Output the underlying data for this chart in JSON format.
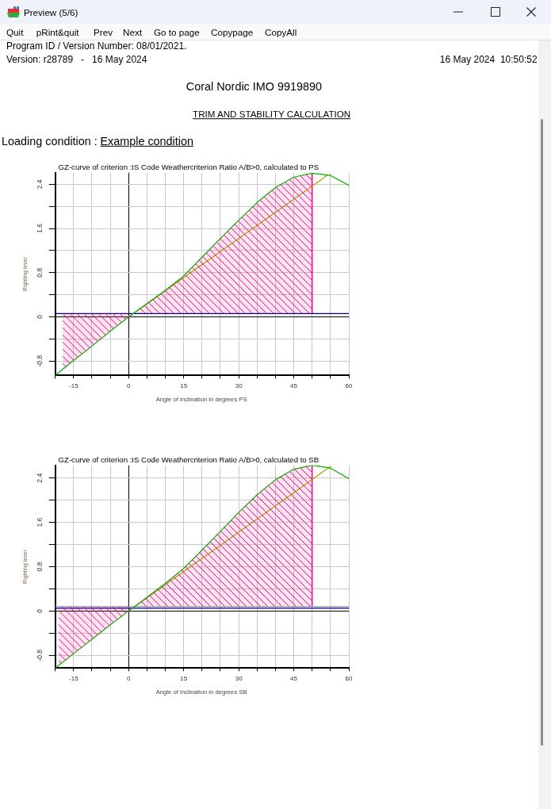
{
  "chart_data": [
    {
      "type": "other",
      "title": "Coral Nordic IMO 9919890",
      "subtitle": "TRIM AND STABILITY CALCULATION",
      "annotations": [
        "Preview (5/6)",
        "Quit",
        "pRint&quit",
        "Prev",
        "Next",
        "Go to page",
        "Copypage",
        "CopyAll",
        "Program ID / Version Number: 08/01/2021.",
        "Version: r28789   -   16 May 2024",
        "16 May 2024  10:50:52",
        "Loading condition :",
        "Example condition"
      ]
    },
    {
      "type": "line",
      "title": "GZ-curve of criterion :IS Code Weathercriterion Ratio A/B>0, calculated to PS",
      "xlabel": "Angle of inclination in degrees PS",
      "ylabel": "Righting lever",
      "xlim": [
        -20,
        60
      ],
      "ylim": [
        -1.06,
        2.61
      ],
      "xticks": [
        {
          "value": -20,
          "label": null
        },
        -15,
        {
          "value": -10,
          "label": null
        },
        {
          "value": -5,
          "label": null
        },
        0,
        {
          "value": 5,
          "label": null
        },
        {
          "value": 10,
          "label": null
        },
        15,
        {
          "value": 20,
          "label": null
        },
        {
          "value": 25,
          "label": null
        },
        30,
        {
          "value": 35,
          "label": null
        },
        {
          "value": 40,
          "label": null
        },
        45,
        {
          "value": 50,
          "label": null
        },
        {
          "value": 55,
          "label": null
        },
        60
      ],
      "yticks": [
        -0.8,
        {
          "value": -0.4,
          "label": null
        },
        0,
        {
          "value": 0.4,
          "label": null
        },
        0.8,
        {
          "value": 1.2,
          "label": null
        },
        1.6,
        {
          "value": 2,
          "label": null
        },
        2.4
      ],
      "grid": true,
      "marker": "none",
      "series": [
        {
          "type": "area",
          "color": "#ff0080",
          "x": [
            1.3,
            5,
            10,
            15,
            20,
            25,
            30,
            35,
            40,
            45,
            50
          ],
          "values": [
            0.06,
            0.24,
            0.48,
            0.74,
            1.08,
            1.42,
            1.75,
            2.07,
            2.34,
            2.53,
            2.6
          ]
        },
        {
          "type": "area",
          "color": "#ff0080",
          "x": [
            -18,
            -18,
            -15,
            -10,
            -5,
            0,
            1.3
          ],
          "values": [
            0.06,
            -0.95,
            -0.79,
            -0.53,
            -0.26,
            0,
            0.06
          ]
        },
        {
          "type": "line",
          "color": "#00b400",
          "x": [
            -20,
            -15,
            -10,
            -5,
            0,
            5,
            10,
            15,
            20,
            25,
            30,
            35,
            40,
            45,
            50,
            55,
            60
          ],
          "values": [
            -1.06,
            -0.79,
            -0.53,
            -0.26,
            0,
            0.24,
            0.48,
            0.74,
            1.08,
            1.42,
            1.75,
            2.07,
            2.34,
            2.53,
            2.6,
            2.56,
            2.38
          ]
        },
        {
          "type": "line",
          "color": "#a8a000",
          "x": [
            0,
            54.3
          ],
          "values": [
            0,
            2.57
          ]
        }
      ],
      "ref_lines": [
        {
          "axis": "y",
          "value": 0.06,
          "color": "#000080"
        }
      ]
    },
    {
      "type": "line",
      "title": "GZ-curve of criterion :IS Code Weathercriterion Ratio A/B>0, calculated to SB",
      "xlabel": "Angle of inclination in degrees SB",
      "ylabel": "Righting lever",
      "xlim": [
        -20,
        60
      ],
      "ylim": [
        -1.03,
        2.63
      ],
      "xticks": [
        {
          "value": -20,
          "label": null
        },
        -15,
        {
          "value": -10,
          "label": null
        },
        {
          "value": -5,
          "label": null
        },
        0,
        {
          "value": 5,
          "label": null
        },
        {
          "value": 10,
          "label": null
        },
        15,
        {
          "value": 20,
          "label": null
        },
        {
          "value": 25,
          "label": null
        },
        30,
        {
          "value": 35,
          "label": null
        },
        {
          "value": 40,
          "label": null
        },
        45,
        {
          "value": 50,
          "label": null
        },
        {
          "value": 55,
          "label": null
        },
        60
      ],
      "yticks": [
        -0.8,
        {
          "value": -0.4,
          "label": null
        },
        0,
        {
          "value": 0.4,
          "label": null
        },
        0.8,
        {
          "value": 1.2,
          "label": null
        },
        1.6,
        {
          "value": 2,
          "label": null
        },
        2.4
      ],
      "grid": true,
      "marker": "none",
      "series": [
        {
          "type": "area",
          "color": "#ff0080",
          "x": [
            1.6,
            5,
            10,
            15,
            20,
            25,
            30,
            35,
            40,
            45,
            50
          ],
          "values": [
            0.08,
            0.25,
            0.5,
            0.77,
            1.1,
            1.44,
            1.78,
            2.1,
            2.37,
            2.56,
            2.63
          ]
        },
        {
          "type": "area",
          "color": "#ff0080",
          "x": [
            -19,
            -19,
            -15,
            -10,
            -5,
            0,
            1.6
          ],
          "values": [
            0.08,
            -0.98,
            -0.77,
            -0.51,
            -0.25,
            0,
            0.08
          ]
        },
        {
          "type": "line",
          "color": "#00b400",
          "x": [
            -20,
            -15,
            -10,
            -5,
            0,
            5,
            10,
            15,
            20,
            25,
            30,
            35,
            40,
            45,
            50,
            55,
            60
          ],
          "values": [
            -1.03,
            -0.77,
            -0.51,
            -0.25,
            0,
            0.25,
            0.5,
            0.77,
            1.1,
            1.44,
            1.78,
            2.1,
            2.37,
            2.56,
            2.63,
            2.58,
            2.39
          ]
        },
        {
          "type": "line",
          "color": "#a8a000",
          "x": [
            0,
            55
          ],
          "values": [
            0,
            2.61
          ]
        }
      ],
      "ref_lines": [
        {
          "axis": "y",
          "value": 0.08,
          "color": "#9090a8"
        },
        {
          "axis": "y",
          "value": 0.05,
          "color": "#000080"
        }
      ]
    }
  ]
}
